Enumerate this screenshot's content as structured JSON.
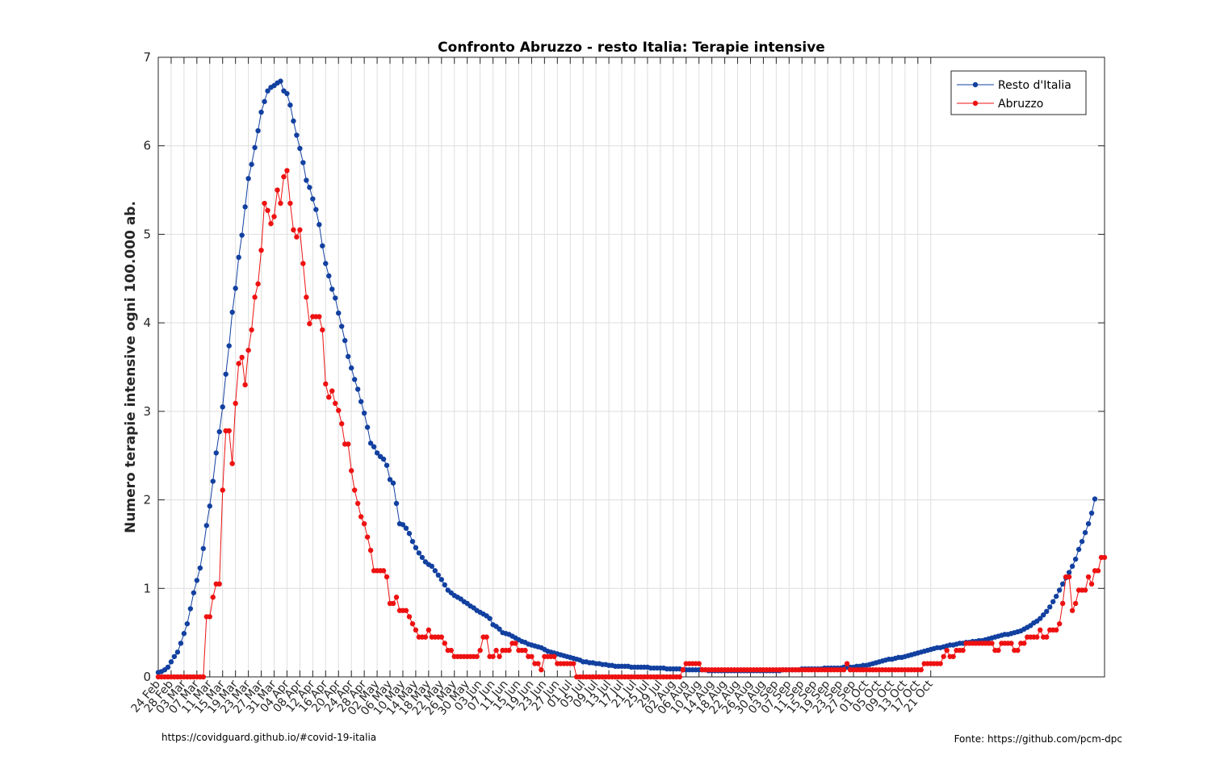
{
  "footer": {
    "left": "https://covidguard.github.io/#covid-19-italia",
    "right": "Fonte: https://github.com/pcm-dpc"
  },
  "chart_data": {
    "type": "line",
    "title": "Confronto Abruzzo - resto Italia: Terapie intensive",
    "xlabel": "",
    "ylabel": "Numero terapie intensive ogni 100.000 ab.",
    "ylim": [
      0,
      7
    ],
    "yticks": [
      0,
      1,
      2,
      3,
      4,
      5,
      6,
      7
    ],
    "start_date": "2020-02-24",
    "xtick_labels": [
      "24 Feb",
      "28 Feb",
      "03 Mar",
      "07 Mar",
      "11 Mar",
      "15 Mar",
      "19 Mar",
      "23 Mar",
      "27 Mar",
      "31 Mar",
      "04 Apr",
      "08 Apr",
      "12 Apr",
      "16 Apr",
      "20 Apr",
      "24 Apr",
      "28 Apr",
      "02 May",
      "06 May",
      "10 May",
      "14 May",
      "18 May",
      "22 May",
      "26 May",
      "30 May",
      "03 Jun",
      "07 Jun",
      "11 Jun",
      "15 Jun",
      "19 Jun",
      "23 Jun",
      "27 Jun",
      "01 Jul",
      "05 Jul",
      "09 Jul",
      "13 Jul",
      "17 Jul",
      "21 Jul",
      "25 Jul",
      "29 Jul",
      "02 Aug",
      "06 Aug",
      "10 Aug",
      "14 Aug",
      "18 Aug",
      "22 Aug",
      "26 Aug",
      "30 Aug",
      "03 Sep",
      "07 Sep",
      "11 Sep",
      "15 Sep",
      "19 Sep",
      "23 Sep",
      "27 Sep",
      "01 Oct",
      "05 Oct",
      "09 Oct",
      "13 Oct",
      "17 Oct",
      "21 Oct"
    ],
    "grid": true,
    "legend_position": "top-right",
    "colors": {
      "resto": "#1240a0",
      "abruzzo": "#ee1111",
      "grid": "#dedede",
      "axis": "#262626"
    },
    "series": [
      {
        "name": "Resto d'Italia",
        "color": "#1240a0",
        "values": [
          0.05,
          0.06,
          0.08,
          0.11,
          0.17,
          0.23,
          0.28,
          0.38,
          0.49,
          0.6,
          0.77,
          0.95,
          1.09,
          1.23,
          1.45,
          1.71,
          1.93,
          2.21,
          2.53,
          2.77,
          3.05,
          3.42,
          3.74,
          4.12,
          4.39,
          4.74,
          4.99,
          5.31,
          5.63,
          5.79,
          5.98,
          6.17,
          6.38,
          6.5,
          6.62,
          6.66,
          6.68,
          6.71,
          6.73,
          6.62,
          6.59,
          6.46,
          6.28,
          6.12,
          5.97,
          5.81,
          5.61,
          5.53,
          5.4,
          5.28,
          5.11,
          4.87,
          4.67,
          4.53,
          4.38,
          4.28,
          4.11,
          3.96,
          3.8,
          3.62,
          3.49,
          3.36,
          3.25,
          3.11,
          2.98,
          2.82,
          2.64,
          2.6,
          2.53,
          2.49,
          2.46,
          2.39,
          2.23,
          2.19,
          1.96,
          1.73,
          1.72,
          1.68,
          1.62,
          1.53,
          1.46,
          1.4,
          1.35,
          1.3,
          1.27,
          1.25,
          1.2,
          1.15,
          1.1,
          1.04,
          0.98,
          0.95,
          0.92,
          0.9,
          0.88,
          0.85,
          0.83,
          0.8,
          0.78,
          0.75,
          0.73,
          0.71,
          0.69,
          0.66,
          0.59,
          0.57,
          0.54,
          0.5,
          0.49,
          0.48,
          0.46,
          0.44,
          0.42,
          0.4,
          0.39,
          0.37,
          0.36,
          0.35,
          0.34,
          0.33,
          0.31,
          0.29,
          0.28,
          0.27,
          0.26,
          0.25,
          0.24,
          0.23,
          0.22,
          0.21,
          0.2,
          0.19,
          0.17,
          0.17,
          0.16,
          0.16,
          0.15,
          0.15,
          0.14,
          0.14,
          0.13,
          0.13,
          0.12,
          0.12,
          0.12,
          0.12,
          0.12,
          0.11,
          0.11,
          0.11,
          0.11,
          0.11,
          0.11,
          0.1,
          0.1,
          0.1,
          0.1,
          0.1,
          0.09,
          0.09,
          0.09,
          0.09,
          0.09,
          0.08,
          0.08,
          0.08,
          0.08,
          0.08,
          0.08,
          0.08,
          0.08,
          0.07,
          0.07,
          0.07,
          0.07,
          0.07,
          0.07,
          0.07,
          0.07,
          0.07,
          0.07,
          0.07,
          0.07,
          0.07,
          0.07,
          0.07,
          0.07,
          0.07,
          0.07,
          0.07,
          0.07,
          0.07,
          0.07,
          0.07,
          0.08,
          0.08,
          0.08,
          0.08,
          0.08,
          0.08,
          0.09,
          0.09,
          0.09,
          0.09,
          0.09,
          0.09,
          0.09,
          0.1,
          0.1,
          0.1,
          0.1,
          0.1,
          0.1,
          0.11,
          0.11,
          0.11,
          0.11,
          0.12,
          0.12,
          0.13,
          0.13,
          0.14,
          0.15,
          0.16,
          0.17,
          0.18,
          0.19,
          0.2,
          0.2,
          0.21,
          0.22,
          0.22,
          0.23,
          0.24,
          0.25,
          0.26,
          0.27,
          0.28,
          0.29,
          0.3,
          0.31,
          0.32,
          0.33,
          0.33,
          0.34,
          0.35,
          0.36,
          0.36,
          0.37,
          0.38,
          0.38,
          0.39,
          0.39,
          0.4,
          0.4,
          0.41,
          0.41,
          0.42,
          0.43,
          0.44,
          0.45,
          0.46,
          0.47,
          0.48,
          0.48,
          0.49,
          0.5,
          0.51,
          0.52,
          0.54,
          0.56,
          0.58,
          0.61,
          0.63,
          0.66,
          0.7,
          0.74,
          0.79,
          0.85,
          0.91,
          0.98,
          1.05,
          1.12,
          1.18,
          1.25,
          1.33,
          1.44,
          1.53,
          1.63,
          1.73,
          1.85,
          2.01
        ]
      },
      {
        "name": "Abruzzo",
        "color": "#ee1111",
        "values": [
          0,
          0,
          0,
          0,
          0,
          0,
          0,
          0,
          0,
          0,
          0,
          0,
          0,
          0,
          0,
          0.68,
          0.68,
          0.9,
          1.05,
          1.05,
          2.11,
          2.78,
          2.78,
          2.41,
          3.09,
          3.54,
          3.61,
          3.3,
          3.69,
          3.92,
          4.29,
          4.44,
          4.82,
          5.35,
          5.27,
          5.12,
          5.2,
          5.5,
          5.35,
          5.65,
          5.72,
          5.35,
          5.05,
          4.97,
          5.05,
          4.67,
          4.29,
          3.99,
          4.07,
          4.07,
          4.07,
          3.92,
          3.31,
          3.16,
          3.23,
          3.09,
          3.01,
          2.86,
          2.63,
          2.63,
          2.33,
          2.11,
          1.96,
          1.81,
          1.73,
          1.58,
          1.43,
          1.2,
          1.2,
          1.2,
          1.2,
          1.13,
          0.83,
          0.83,
          0.9,
          0.75,
          0.75,
          0.75,
          0.68,
          0.6,
          0.53,
          0.45,
          0.45,
          0.45,
          0.53,
          0.45,
          0.45,
          0.45,
          0.45,
          0.38,
          0.3,
          0.3,
          0.23,
          0.23,
          0.23,
          0.23,
          0.23,
          0.23,
          0.23,
          0.23,
          0.3,
          0.45,
          0.45,
          0.23,
          0.23,
          0.3,
          0.23,
          0.3,
          0.3,
          0.3,
          0.38,
          0.38,
          0.3,
          0.3,
          0.3,
          0.23,
          0.23,
          0.15,
          0.15,
          0.08,
          0.23,
          0.23,
          0.23,
          0.23,
          0.15,
          0.15,
          0.15,
          0.15,
          0.15,
          0.15,
          0,
          0,
          0,
          0,
          0,
          0,
          0,
          0,
          0,
          0,
          0,
          0,
          0,
          0,
          0,
          0,
          0,
          0,
          0,
          0,
          0,
          0,
          0,
          0,
          0,
          0,
          0,
          0,
          0,
          0,
          0,
          0,
          0,
          0.08,
          0.15,
          0.15,
          0.15,
          0.15,
          0.15,
          0.08,
          0.08,
          0.08,
          0.08,
          0.08,
          0.08,
          0.08,
          0.08,
          0.08,
          0.08,
          0.08,
          0.08,
          0.08,
          0.08,
          0.08,
          0.08,
          0.08,
          0.08,
          0.08,
          0.08,
          0.08,
          0.08,
          0.08,
          0.08,
          0.08,
          0.08,
          0.08,
          0.08,
          0.08,
          0.08,
          0.08,
          0.08,
          0.08,
          0.08,
          0.08,
          0.08,
          0.08,
          0.08,
          0.08,
          0.08,
          0.08,
          0.08,
          0.08,
          0.08,
          0.08,
          0.15,
          0.08,
          0.08,
          0.08,
          0.08,
          0.08,
          0.08,
          0.08,
          0.08,
          0.08,
          0.08,
          0.08,
          0.08,
          0.08,
          0.08,
          0.08,
          0.08,
          0.08,
          0.08,
          0.08,
          0.08,
          0.08,
          0.08,
          0.08,
          0.15,
          0.15,
          0.15,
          0.15,
          0.15,
          0.15,
          0.23,
          0.3,
          0.23,
          0.23,
          0.3,
          0.3,
          0.3,
          0.38,
          0.38,
          0.38,
          0.38,
          0.38,
          0.38,
          0.38,
          0.38,
          0.38,
          0.3,
          0.3,
          0.38,
          0.38,
          0.38,
          0.38,
          0.3,
          0.3,
          0.38,
          0.38,
          0.45,
          0.45,
          0.45,
          0.45,
          0.53,
          0.45,
          0.45,
          0.53,
          0.53,
          0.53,
          0.6,
          0.83,
          1.13,
          1.13,
          0.75,
          0.83,
          0.98,
          0.98,
          0.98,
          1.13,
          1.05,
          1.2,
          1.2,
          1.35,
          1.35
        ]
      }
    ]
  }
}
